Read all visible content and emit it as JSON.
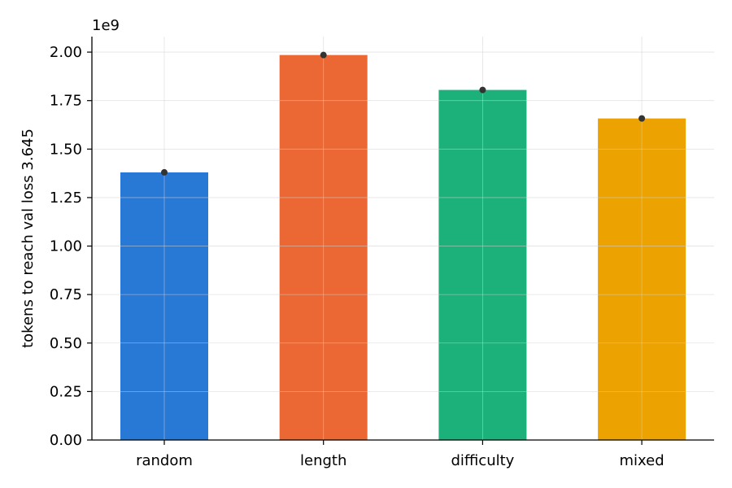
{
  "chart_data": {
    "type": "bar",
    "categories": [
      "random",
      "length",
      "difficulty",
      "mixed"
    ],
    "values": [
      1380000000,
      1985000000,
      1805000000,
      1658000000
    ],
    "point_values": [
      1380000000,
      1985000000,
      1805000000,
      1658000000
    ],
    "colors": [
      "#2878d6",
      "#eb6834",
      "#1cb07a",
      "#eca200"
    ],
    "point_color": "#333333",
    "ylabel": "tokens to reach val loss 3.645",
    "xlabel": "",
    "title": "",
    "ylim": [
      0,
      2080000000
    ],
    "yticks": [
      0,
      0.25,
      0.5,
      0.75,
      1.0,
      1.25,
      1.5,
      1.75,
      2.0
    ],
    "ytick_labels": [
      "0.00",
      "0.25",
      "0.50",
      "0.75",
      "1.00",
      "1.25",
      "1.50",
      "1.75",
      "2.00"
    ],
    "ytick_scale": 1000000000,
    "offset_text": "1e9",
    "grid": true,
    "legend": "none"
  }
}
